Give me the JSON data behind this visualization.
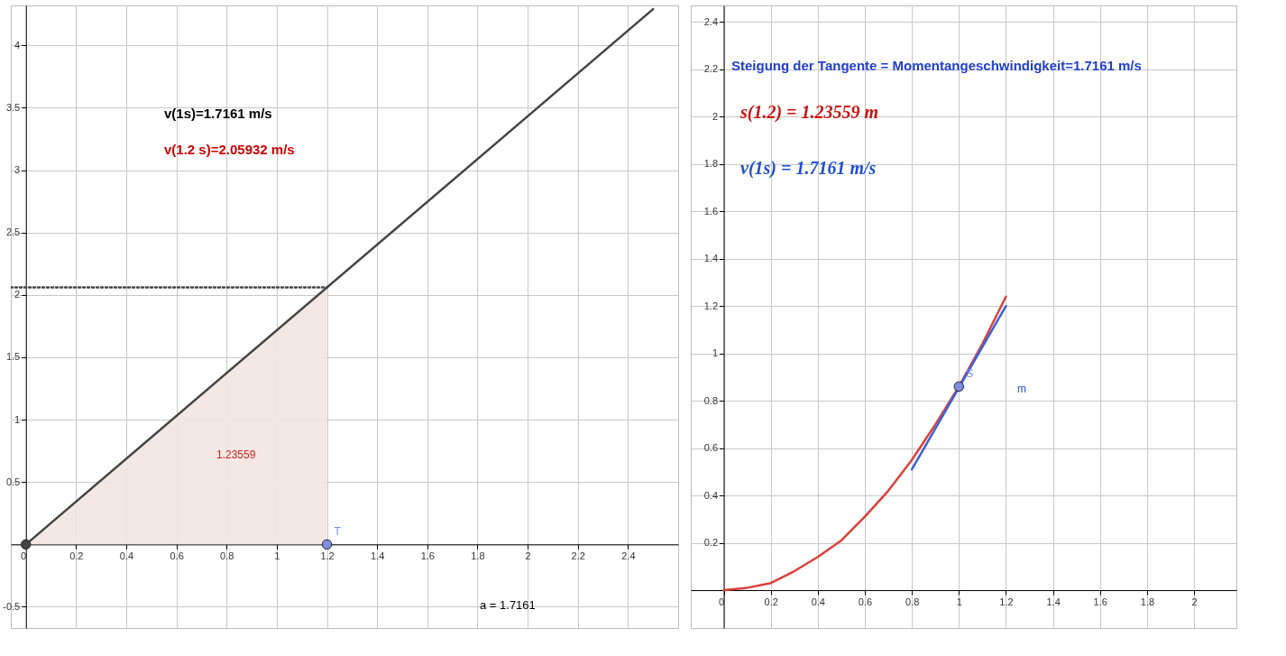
{
  "chart_data": [
    {
      "type": "line",
      "xlim": [
        -0.06,
        2.6
      ],
      "ylim": [
        -0.67,
        4.32
      ],
      "xticks": [
        0,
        0.2,
        0.4,
        0.6,
        0.8,
        1,
        1.2,
        1.4,
        1.6,
        1.8,
        2,
        2.2,
        2.4
      ],
      "yticks": [
        -0.5,
        {
          "value": 0,
          "label": null
        },
        0.5,
        1,
        1.5,
        2,
        2.5,
        3,
        3.5,
        4
      ],
      "grid": true,
      "series": [
        {
          "type": "area",
          "color": "#f2e6e0",
          "x": [
            0,
            1.2
          ],
          "values": [
            0,
            2.06
          ]
        },
        {
          "line_style": "solid",
          "color": "#444444",
          "x": [
            0,
            2.5
          ],
          "values": [
            0,
            4.29
          ]
        },
        {
          "line_style": "dotted",
          "color": "#444444",
          "x": [
            -0.06,
            1.2
          ],
          "values": [
            2.06,
            2.06
          ]
        },
        {
          "type": "scatter",
          "color": "#444444",
          "x": [
            0
          ],
          "values": [
            0
          ]
        },
        {
          "type": "scatter",
          "name": "T",
          "color": "#7b8fe0",
          "x": [
            1.2
          ],
          "values": [
            0
          ]
        }
      ],
      "annotations": [
        "v(1s)=1.7161 m/s",
        "v(1.2 s)=2.05932 m/s",
        "1.23559",
        "a = 1.7161"
      ]
    },
    {
      "type": "line",
      "xlim": [
        -0.14,
        2.18
      ],
      "ylim": [
        -0.16,
        2.47
      ],
      "xticks": [
        0,
        0.2,
        0.4,
        0.6,
        0.8,
        1,
        1.2,
        1.4,
        1.6,
        1.8,
        2
      ],
      "yticks": [
        {
          "value": 0,
          "label": null
        },
        0.2,
        0.4,
        0.6,
        0.8,
        1,
        1.2,
        1.4,
        1.6,
        1.8,
        2,
        2.2,
        2.4
      ],
      "grid": true,
      "series": [
        {
          "line_style": "solid",
          "color": "#d9413a",
          "x": [
            0,
            0.1,
            0.2,
            0.3,
            0.4,
            0.5,
            0.6,
            0.7,
            0.8,
            0.9,
            1,
            1.1,
            1.2
          ],
          "values": [
            0,
            0.01,
            0.03,
            0.08,
            0.14,
            0.21,
            0.31,
            0.42,
            0.55,
            0.7,
            0.86,
            1.04,
            1.24
          ]
        },
        {
          "line_style": "solid",
          "color": "#3a62d9",
          "x": [
            0.8,
            1.2
          ],
          "values": [
            0.51,
            1.2
          ]
        },
        {
          "type": "scatter",
          "name": "S",
          "color": "#7b8fe0",
          "x": [
            1
          ],
          "values": [
            0.86
          ]
        }
      ],
      "annotations": [
        "Steigung der Tangente = Momentangeschwindigkeit=1.7161 m/s",
        "s(1.2) = 1.23559  m",
        "v(1s) = 1.7161 m/s",
        "m"
      ]
    }
  ]
}
